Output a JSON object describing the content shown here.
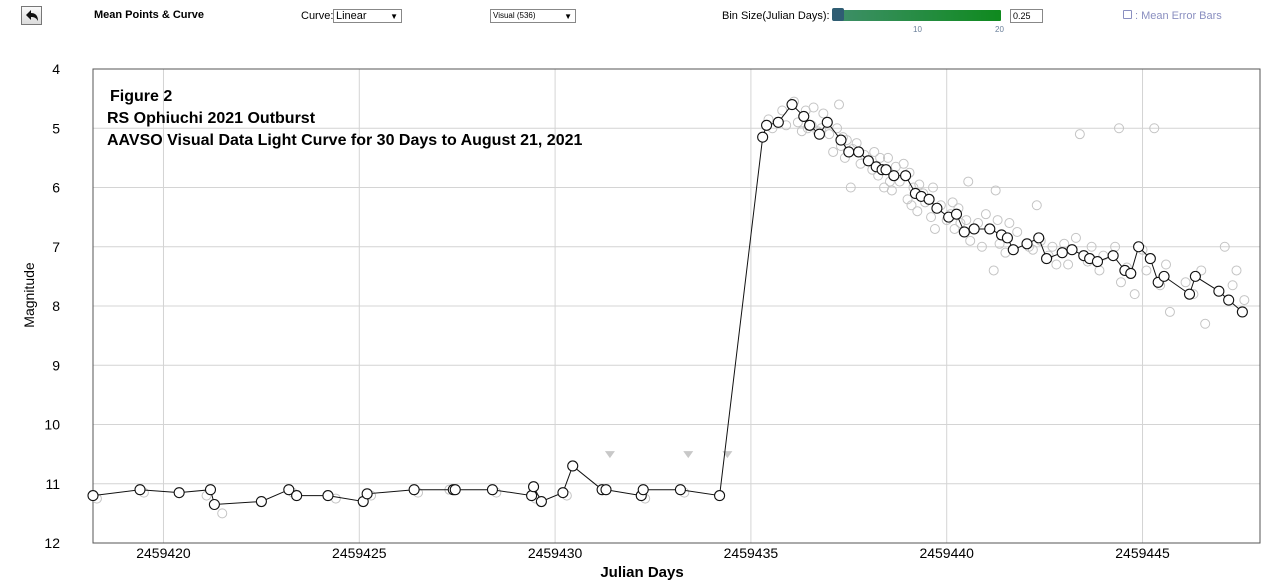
{
  "toolbar": {
    "back_icon": "back-arrow-icon",
    "title": "Mean Points & Curve",
    "curve_label": "Curve:",
    "curve_value": "Linear",
    "data_select_value": "Visual (536)",
    "bin_label": "Bin Size(Julian Days):",
    "slider_tick_10": "10",
    "slider_tick_20": "20",
    "bin_value": "0.25",
    "error_bars_label": ": Mean Error Bars",
    "colors": {
      "slider_green": "#0f8a1e",
      "slider_thumb": "#2f5d73",
      "link": "#8a8fc0"
    }
  },
  "chart_data": {
    "type": "scatter",
    "title_lines": [
      "Figure 2",
      "RS Ophiuchi 2021 Outburst",
      "AAVSO Visual Data Light Curve for 30 Days to August 21, 2021"
    ],
    "xlabel": "Julian Days",
    "ylabel": "Magnitude",
    "xlim": [
      2459418.2,
      2459448.0
    ],
    "ylim": [
      4,
      12
    ],
    "y_reversed": true,
    "xticks": [
      2459420,
      2459425,
      2459430,
      2459435,
      2459440,
      2459445
    ],
    "yticks": [
      4,
      5,
      6,
      7,
      8,
      9,
      10,
      11,
      12
    ],
    "grid": true,
    "series": [
      {
        "role": "mean",
        "style": "line-with-open-circles",
        "x": [
          2459418.2,
          2459419.4,
          2459420.4,
          2459421.2,
          2459421.3,
          2459422.5,
          2459423.2,
          2459423.4,
          2459424.2,
          2459425.1,
          2459425.2,
          2459426.4,
          2459427.4,
          2459427.45,
          2459428.4,
          2459429.4,
          2459429.45,
          2459429.65,
          2459430.2,
          2459430.45,
          2459431.2,
          2459431.3,
          2459432.2,
          2459432.25,
          2459433.2,
          2459434.2,
          2459435.3,
          2459435.4,
          2459435.7,
          2459436.05,
          2459436.35,
          2459436.5,
          2459436.75,
          2459436.95,
          2459437.3,
          2459437.5,
          2459437.75,
          2459438.0,
          2459438.2,
          2459438.35,
          2459438.45,
          2459438.65,
          2459438.95,
          2459439.2,
          2459439.35,
          2459439.55,
          2459439.75,
          2459440.05,
          2459440.25,
          2459440.45,
          2459440.7,
          2459441.1,
          2459441.4,
          2459441.55,
          2459441.7,
          2459442.05,
          2459442.35,
          2459442.55,
          2459442.95,
          2459443.2,
          2459443.5,
          2459443.65,
          2459443.85,
          2459444.25,
          2459444.55,
          2459444.7,
          2459444.9,
          2459445.2,
          2459445.4,
          2459445.55,
          2459446.2,
          2459446.35,
          2459446.95,
          2459447.2,
          2459447.55
        ],
        "y": [
          11.2,
          11.1,
          11.15,
          11.1,
          11.35,
          11.3,
          11.1,
          11.2,
          11.2,
          11.3,
          11.17,
          11.1,
          11.1,
          11.1,
          11.1,
          11.2,
          11.05,
          11.3,
          11.15,
          10.7,
          11.1,
          11.1,
          11.2,
          11.1,
          11.1,
          11.2,
          5.15,
          4.95,
          4.9,
          4.6,
          4.8,
          4.95,
          5.1,
          4.9,
          5.2,
          5.4,
          5.4,
          5.55,
          5.65,
          5.7,
          5.7,
          5.8,
          5.8,
          6.1,
          6.15,
          6.2,
          6.35,
          6.5,
          6.45,
          6.75,
          6.7,
          6.7,
          6.8,
          6.85,
          7.05,
          6.95,
          6.85,
          7.2,
          7.1,
          7.05,
          7.15,
          7.2,
          7.25,
          7.15,
          7.4,
          7.45,
          7.0,
          7.2,
          7.6,
          7.5,
          7.8,
          7.5,
          7.75,
          7.9,
          8.1
        ]
      },
      {
        "role": "observations",
        "style": "faint-open-circles",
        "x": [
          2459418.3,
          2459419.5,
          2459421.1,
          2459421.5,
          2459423.3,
          2459424.4,
          2459425.3,
          2459426.5,
          2459427.3,
          2459428.5,
          2459429.5,
          2459430.3,
          2459432.3,
          2459433.3,
          2459435.45,
          2459435.55,
          2459435.8,
          2459435.9,
          2459436.1,
          2459436.2,
          2459436.3,
          2459436.4,
          2459436.45,
          2459436.55,
          2459436.6,
          2459436.7,
          2459436.8,
          2459436.85,
          2459437.0,
          2459437.1,
          2459437.2,
          2459437.25,
          2459437.3,
          2459437.35,
          2459437.4,
          2459437.45,
          2459437.55,
          2459437.6,
          2459437.7,
          2459437.8,
          2459437.9,
          2459438.1,
          2459438.15,
          2459438.25,
          2459438.3,
          2459438.4,
          2459438.5,
          2459438.55,
          2459438.6,
          2459438.7,
          2459438.8,
          2459438.9,
          2459439.0,
          2459439.05,
          2459439.1,
          2459439.15,
          2459439.25,
          2459439.3,
          2459439.4,
          2459439.45,
          2459439.6,
          2459439.65,
          2459439.7,
          2459439.85,
          2459440.0,
          2459440.1,
          2459440.15,
          2459440.2,
          2459440.3,
          2459440.35,
          2459440.5,
          2459440.55,
          2459440.6,
          2459440.8,
          2459440.9,
          2459441.0,
          2459441.2,
          2459441.25,
          2459441.3,
          2459441.35,
          2459441.5,
          2459441.6,
          2459441.8,
          2459442.1,
          2459442.2,
          2459442.3,
          2459442.4,
          2459442.6,
          2459442.7,
          2459442.8,
          2459443.0,
          2459443.1,
          2459443.3,
          2459443.4,
          2459443.6,
          2459443.7,
          2459443.9,
          2459444.0,
          2459444.3,
          2459444.4,
          2459444.45,
          2459444.6,
          2459444.8,
          2459445.0,
          2459445.1,
          2459445.3,
          2459445.45,
          2459445.6,
          2459445.7,
          2459446.1,
          2459446.3,
          2459446.5,
          2459446.6,
          2459447.1,
          2459447.3,
          2459447.4,
          2459447.6
        ],
        "y": [
          11.25,
          11.15,
          11.2,
          11.5,
          11.15,
          11.25,
          11.2,
          11.15,
          11.1,
          11.15,
          11.25,
          11.2,
          11.25,
          11.15,
          4.85,
          5.0,
          4.7,
          4.95,
          4.55,
          4.9,
          5.05,
          4.7,
          5.0,
          4.95,
          4.65,
          5.05,
          5.0,
          4.75,
          5.1,
          5.4,
          5.0,
          4.6,
          5.3,
          5.15,
          5.5,
          5.2,
          6.0,
          5.35,
          5.25,
          5.6,
          5.45,
          5.7,
          5.4,
          5.8,
          5.5,
          6.0,
          5.5,
          5.9,
          6.05,
          5.65,
          5.9,
          5.6,
          6.2,
          5.75,
          6.3,
          6.0,
          6.4,
          5.95,
          6.1,
          6.25,
          6.5,
          6.0,
          6.7,
          6.3,
          6.55,
          6.45,
          6.25,
          6.7,
          6.35,
          6.6,
          6.55,
          5.9,
          6.9,
          6.6,
          7.0,
          6.45,
          7.4,
          6.05,
          6.55,
          6.95,
          7.1,
          6.6,
          6.75,
          7.0,
          7.05,
          6.3,
          6.9,
          7.15,
          7.0,
          7.3,
          6.95,
          7.3,
          6.85,
          5.1,
          7.25,
          7.0,
          7.4,
          7.15,
          7.0,
          5.0,
          7.6,
          7.35,
          7.8,
          7.05,
          7.4,
          5.0,
          7.65,
          7.3,
          8.1,
          7.6,
          7.8,
          7.4,
          8.3,
          7.0,
          7.65,
          7.4,
          7.9
        ]
      },
      {
        "role": "fainter-than",
        "style": "down-triangles",
        "x": [
          2459431.4,
          2459433.4,
          2459434.4
        ],
        "y": [
          10.5,
          10.5,
          10.5
        ]
      }
    ]
  }
}
